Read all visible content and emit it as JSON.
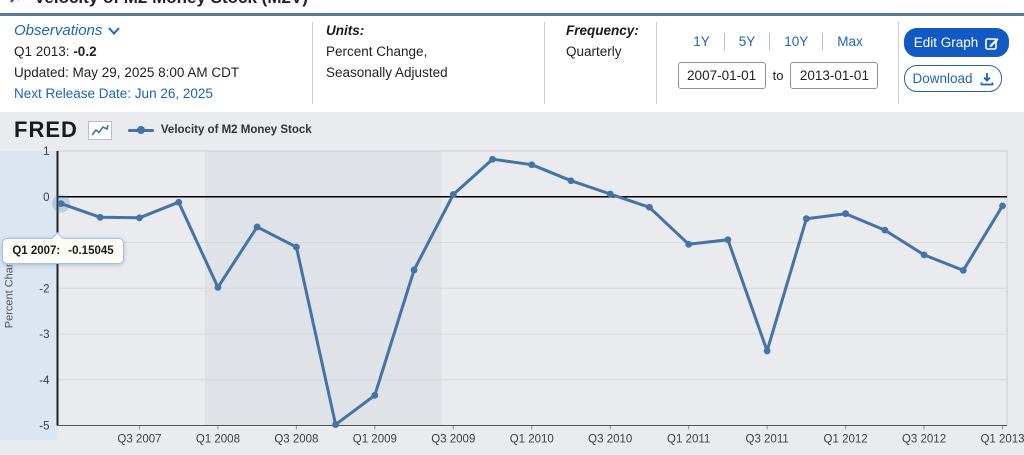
{
  "page": {
    "title_partial": "Velocity of M2 Money Stock (M2V)"
  },
  "meta": {
    "observations": {
      "label": "Observations",
      "latest_period": "Q1 2013:",
      "latest_value": "-0.2",
      "updated": "Updated: May 29, 2025 8:00 AM CDT",
      "next_release": "Next Release Date: Jun 26, 2025"
    },
    "units": {
      "label": "Units:",
      "line1": "Percent Change,",
      "line2": "Seasonally Adjusted"
    },
    "frequency": {
      "label": "Frequency:",
      "value": "Quarterly"
    },
    "range": {
      "presets": [
        "1Y",
        "5Y",
        "10Y",
        "Max"
      ],
      "start": "2007-01-01",
      "separator": "to",
      "end": "2013-01-01"
    },
    "actions": {
      "edit": "Edit Graph",
      "download": "Download"
    }
  },
  "chart": {
    "logo": "FRED",
    "legend": "Velocity of M2 Money Stock",
    "ylabel": "Percent Change",
    "tooltip": {
      "label": "Q1 2007:",
      "value": "-0.15045"
    },
    "colors": {
      "line": "#4572a7",
      "recession_band": "#dfe2e7",
      "hover_band": "#dce5f2",
      "grid": "#d8d8d8",
      "zero_line": "#000000",
      "axis": "#222222",
      "link_blue": "#1f63b8",
      "button_blue": "#1259c3"
    }
  },
  "chart_data": {
    "type": "line",
    "title": "Velocity of M2 Money Stock",
    "xlabel": "",
    "ylabel": "Percent Change",
    "units": "Percent Change, Seasonally Adjusted",
    "frequency": "Quarterly",
    "ylim": [
      -5,
      1
    ],
    "grid": true,
    "legend_position": "top",
    "categories": [
      "Q1 2007",
      "Q2 2007",
      "Q3 2007",
      "Q4 2007",
      "Q1 2008",
      "Q2 2008",
      "Q3 2008",
      "Q4 2008",
      "Q1 2009",
      "Q2 2009",
      "Q3 2009",
      "Q4 2009",
      "Q1 2010",
      "Q2 2010",
      "Q3 2010",
      "Q4 2010",
      "Q1 2011",
      "Q2 2011",
      "Q3 2011",
      "Q4 2011",
      "Q1 2012",
      "Q2 2012",
      "Q3 2012",
      "Q4 2012",
      "Q1 2013"
    ],
    "series": [
      {
        "name": "Velocity of M2 Money Stock",
        "values": [
          -0.15045,
          -0.45,
          -0.46,
          -0.12,
          -1.98,
          -0.66,
          -1.1,
          -4.98,
          -4.34,
          -1.6,
          0.05,
          0.82,
          0.7,
          0.35,
          0.06,
          -0.23,
          -1.04,
          -0.94,
          -3.37,
          -0.48,
          -0.37,
          -0.73,
          -1.27,
          -1.61,
          -0.2
        ]
      }
    ],
    "y_ticks": [
      "1",
      "0",
      "-1",
      "-2",
      "-3",
      "-4",
      "-5"
    ],
    "x_ticks_shown": [
      "Q3 2007",
      "Q1 2008",
      "Q3 2008",
      "Q1 2009",
      "Q3 2009",
      "Q1 2010",
      "Q3 2010",
      "Q1 2011",
      "Q3 2011",
      "Q1 2012",
      "Q3 2012",
      "Q1 2013"
    ],
    "recession_shading": {
      "from_index": 3.67,
      "to_index": 9.7
    },
    "hovered_point": {
      "category": "Q1 2007",
      "index": 0,
      "value": -0.15045
    }
  }
}
